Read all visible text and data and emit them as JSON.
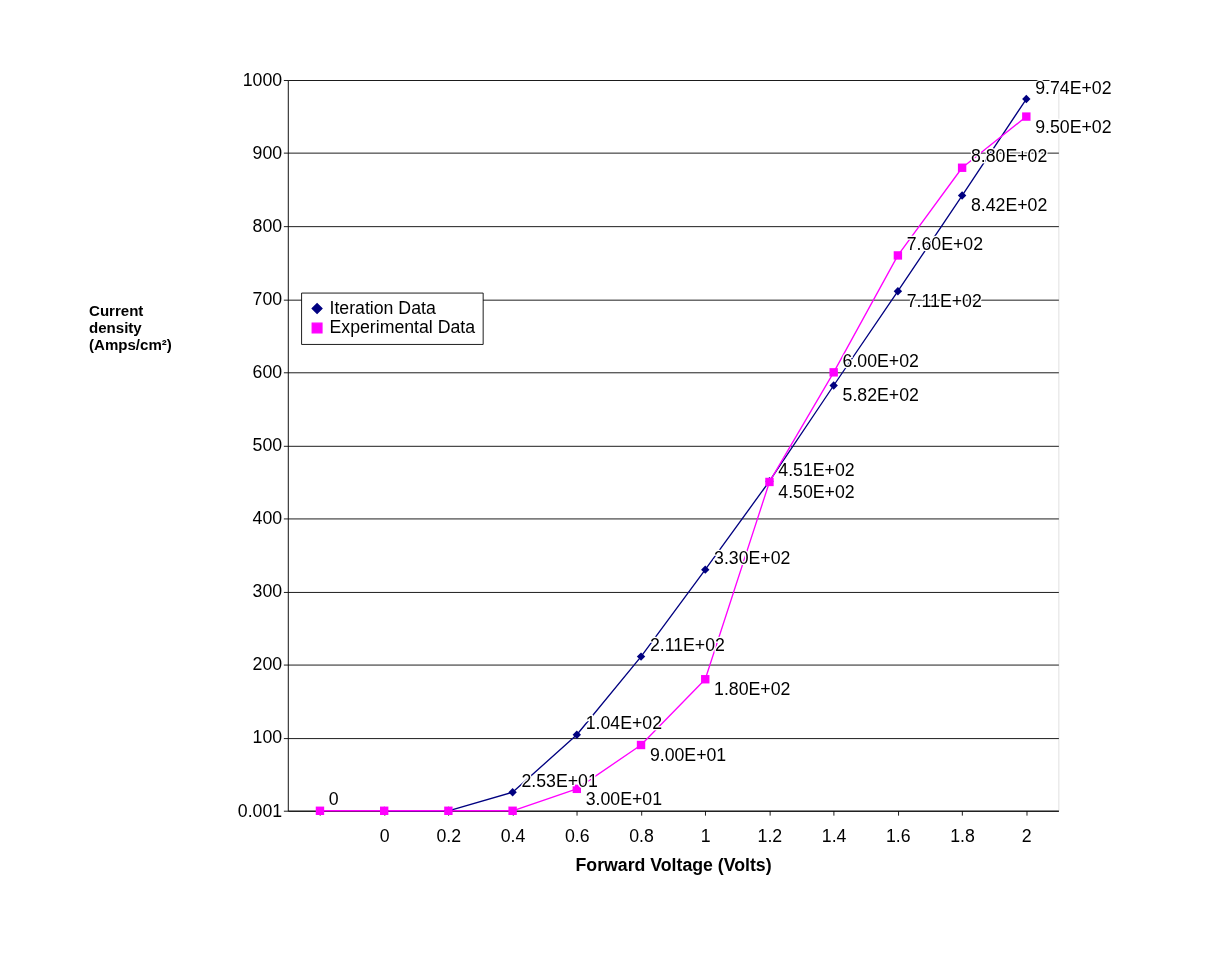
{
  "chart_data": {
    "type": "line",
    "xlabel": "Forward Voltage (Volts)",
    "ylabel": "Current density (Amps/cm²)",
    "categories": [
      null,
      "0",
      "0.2",
      "0.4",
      "0.6",
      "0.8",
      "1",
      "1.2",
      "1.4",
      "1.6",
      "1.8",
      "2"
    ],
    "ylim": [
      0,
      1000
    ],
    "yticks": [
      0.001,
      100,
      200,
      300,
      400,
      500,
      600,
      700,
      800,
      900,
      1000
    ],
    "grid": "y",
    "legend": "top left",
    "line_style": "solid",
    "series": [
      {
        "name": "Iteration Data",
        "color": "#000080",
        "marker": "diamond",
        "values": [
          null,
          0,
          0,
          25.3,
          104,
          211,
          330,
          451,
          582,
          711,
          842,
          974
        ],
        "value_labels": [
          null,
          null,
          null,
          "2.53E+01",
          "1.04E+02",
          "2.11E+02",
          "3.30E+02",
          "4.51E+02",
          "5.82E+02",
          "7.11E+02",
          "8.42E+02",
          "9.74E+02"
        ]
      },
      {
        "name": "Experimental Data",
        "color": "#ff00ff",
        "marker": "square",
        "values": [
          0,
          0,
          0,
          0,
          30,
          90,
          180,
          450,
          600,
          760,
          880,
          950
        ],
        "value_labels": [
          "0",
          null,
          null,
          null,
          "3.00E+01",
          "9.00E+01",
          "1.80E+02",
          "4.50E+02",
          "6.00E+02",
          "7.60E+02",
          "8.80E+02",
          "9.50E+02"
        ]
      }
    ]
  }
}
